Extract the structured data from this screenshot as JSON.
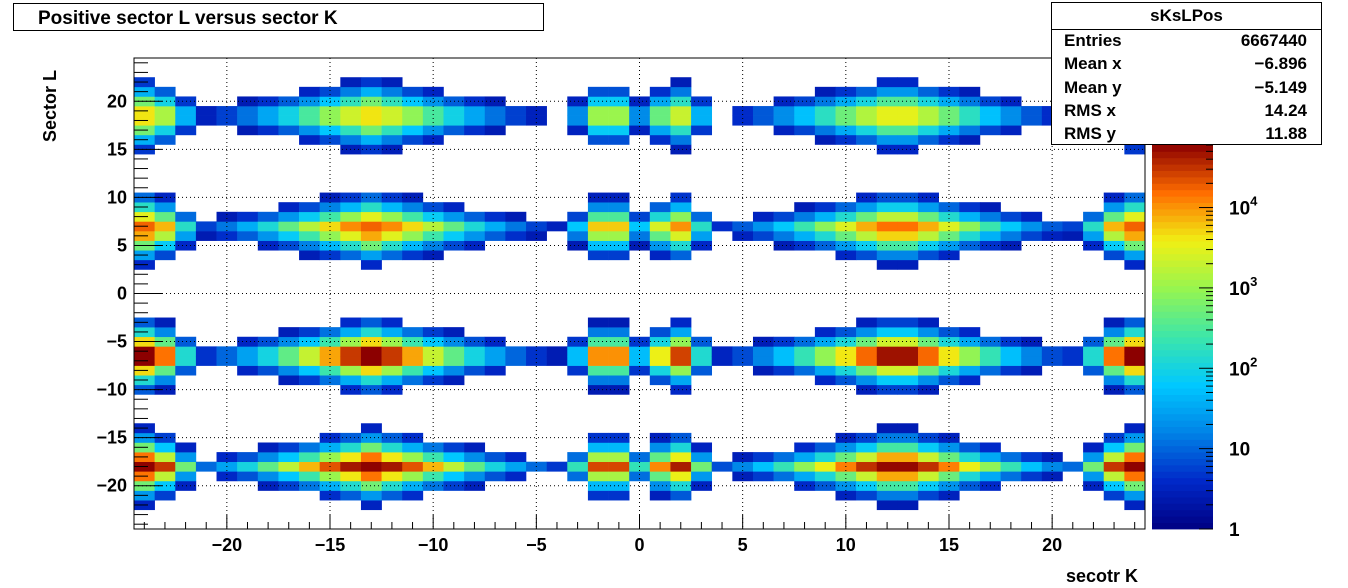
{
  "chart_data": {
    "type": "heatmap",
    "title": "Positive sector L versus sector K",
    "xlabel": "secotr K",
    "ylabel": "Sector L",
    "xlim": [
      -24.5,
      24.5
    ],
    "ylim": [
      -24.5,
      24.5
    ],
    "x_ticks": [
      -20,
      -15,
      -10,
      -5,
      0,
      5,
      10,
      15,
      20
    ],
    "x_tick_labels": [
      "−20",
      "−15",
      "−10",
      "−5",
      "0",
      "5",
      "10",
      "15",
      "20"
    ],
    "y_ticks": [
      -20,
      -15,
      -10,
      -5,
      0,
      5,
      10,
      15,
      20
    ],
    "y_tick_labels": [
      "−20",
      "−15",
      "−10",
      "−5",
      "0",
      "5",
      "10",
      "15",
      "20"
    ],
    "grid": true,
    "z_scale": "log",
    "z_range": [
      1,
      60000
    ],
    "colorbar_ticks": [
      {
        "value": 1,
        "base": "1",
        "exp": ""
      },
      {
        "value": 10,
        "base": "10",
        "exp": ""
      },
      {
        "value": 100,
        "base": "10",
        "exp": "2"
      },
      {
        "value": 1000,
        "base": "10",
        "exp": "3"
      },
      {
        "value": 10000,
        "base": "10",
        "exp": "4"
      }
    ],
    "x_clusters": [
      {
        "center": -23.5,
        "hw": 1.5,
        "side": -1
      },
      {
        "center": -13.0,
        "hw": 4.8,
        "side": 0
      },
      {
        "center": -1.5,
        "hw": 1.3,
        "side": 0
      },
      {
        "center": 1.7,
        "hw": 1.3,
        "side": 0
      },
      {
        "center": 12.5,
        "hw": 4.8,
        "side": 0
      },
      {
        "center": 23.5,
        "hw": 1.5,
        "side": 1
      }
    ],
    "y_clusters": [
      {
        "center": 18.5,
        "hw": 2.0,
        "amp": 0.75
      },
      {
        "center": 6.8,
        "hw": 2.0,
        "amp": 0.85
      },
      {
        "center": -6.5,
        "hw": 2.0,
        "amp": 1.0
      },
      {
        "center": -18.0,
        "hw": 2.0,
        "amp": 0.95
      }
    ],
    "stats": {
      "name": "sKsLPos",
      "rows": [
        {
          "label": "Entries",
          "value": "6667440"
        },
        {
          "label": "Mean x",
          "value": "−6.896"
        },
        {
          "label": "Mean y",
          "value": "−5.149"
        },
        {
          "label": "RMS x",
          "value": "14.24"
        },
        {
          "label": "RMS y",
          "value": "11.88"
        }
      ]
    }
  }
}
